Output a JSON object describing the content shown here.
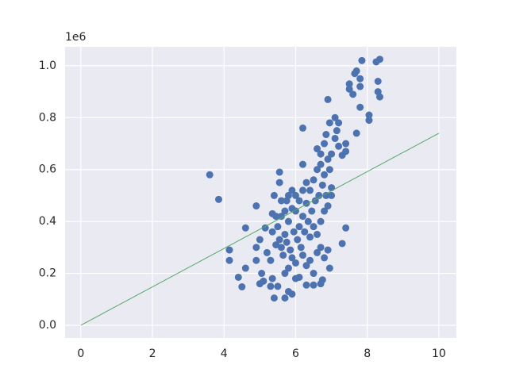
{
  "chart_data": {
    "type": "scatter",
    "y_offset_label": "1e6",
    "xlim": [
      -0.44,
      10.49
    ],
    "ylim": [
      -49000,
      1073000
    ],
    "xticks": [
      0,
      2,
      4,
      6,
      8,
      10
    ],
    "yticks": [
      {
        "value": 0,
        "label": "0.0"
      },
      {
        "value": 200000,
        "label": "0.2"
      },
      {
        "value": 400000,
        "label": "0.4"
      },
      {
        "value": 600000,
        "label": "0.6"
      },
      {
        "value": 800000,
        "label": "0.8"
      },
      {
        "value": 1000000,
        "label": "1.0"
      }
    ],
    "grid": true,
    "series": [
      {
        "type": "scatter",
        "color": "#4c72b0",
        "x": [
          3.6,
          3.85,
          4.15,
          4.15,
          4.4,
          4.5,
          4.6,
          4.6,
          4.9,
          4.9,
          4.9,
          5.0,
          5.05,
          5.0,
          5.1,
          5.15,
          5.3,
          5.35,
          5.4,
          5.4,
          5.5,
          5.55,
          5.55,
          5.7,
          5.8,
          5.9,
          6.2,
          6.2,
          7.3,
          7.4,
          6.9,
          7.5,
          7.5,
          7.6,
          7.65,
          7.7,
          7.8,
          7.8,
          7.8,
          7.85,
          8.05,
          8.05,
          8.25,
          8.35,
          8.3,
          8.3,
          8.35,
          7.7,
          7.4,
          7.4,
          7.3,
          7.2,
          7.1,
          6.95,
          6.85,
          6.7,
          6.75,
          6.5,
          6.3,
          6.0,
          6.1,
          6.95,
          7.0,
          5.2,
          5.3,
          5.35,
          5.45,
          5.6,
          5.75,
          5.6,
          5.7,
          5.8,
          5.9,
          6.0,
          6.1,
          6.2,
          6.3,
          6.4,
          6.5,
          6.6,
          6.7,
          6.8,
          6.9,
          7.0,
          5.65,
          5.75,
          5.85,
          5.95,
          6.05,
          6.15,
          6.25,
          6.35,
          6.45,
          6.55,
          6.65,
          6.75,
          6.85,
          6.95,
          5.5,
          5.6,
          5.7,
          5.8,
          5.9,
          6.0,
          6.1,
          6.2,
          6.3,
          6.4,
          6.5,
          6.6,
          6.7,
          6.8,
          6.9,
          5.9,
          6.0,
          6.2,
          6.3,
          6.4,
          6.5,
          5.8,
          5.7,
          6.6,
          6.7,
          6.8,
          7.1,
          7.2,
          7.15,
          6.6,
          6.7,
          6.8,
          6.9,
          7.0,
          5.55,
          5.45,
          5.35
        ],
        "values": [
          580000,
          485000,
          290000,
          250000,
          185000,
          148000,
          375000,
          220000,
          460000,
          250000,
          300000,
          160000,
          200000,
          330000,
          170000,
          375000,
          150000,
          180000,
          105000,
          500000,
          150000,
          590000,
          550000,
          105000,
          130000,
          120000,
          760000,
          620000,
          315000,
          375000,
          870000,
          930000,
          910000,
          890000,
          970000,
          980000,
          950000,
          920000,
          840000,
          1020000,
          790000,
          810000,
          1015000,
          1025000,
          940000,
          900000,
          880000,
          740000,
          700000,
          670000,
          655000,
          780000,
          800000,
          780000,
          735000,
          160000,
          175000,
          155000,
          155000,
          180000,
          185000,
          220000,
          530000,
          280000,
          250000,
          430000,
          420000,
          480000,
          480000,
          300000,
          350000,
          400000,
          450000,
          500000,
          380000,
          420000,
          470000,
          520000,
          560000,
          600000,
          620000,
          580000,
          640000,
          660000,
          270000,
          320000,
          290000,
          360000,
          330000,
          300000,
          360000,
          400000,
          440000,
          480000,
          500000,
          540000,
          500000,
          600000,
          380000,
          420000,
          440000,
          500000,
          520000,
          440000,
          480000,
          520000,
          550000,
          340000,
          380000,
          280000,
          300000,
          260000,
          290000,
          260000,
          240000,
          270000,
          230000,
          250000,
          200000,
          220000,
          200000,
          680000,
          660000,
          700000,
          720000,
          690000,
          750000,
          350000,
          400000,
          440000,
          460000,
          500000,
          330000,
          310000,
          360000
        ]
      },
      {
        "type": "line",
        "color": "#55a868",
        "x": [
          0,
          10
        ],
        "values": [
          0,
          740000
        ]
      }
    ]
  }
}
